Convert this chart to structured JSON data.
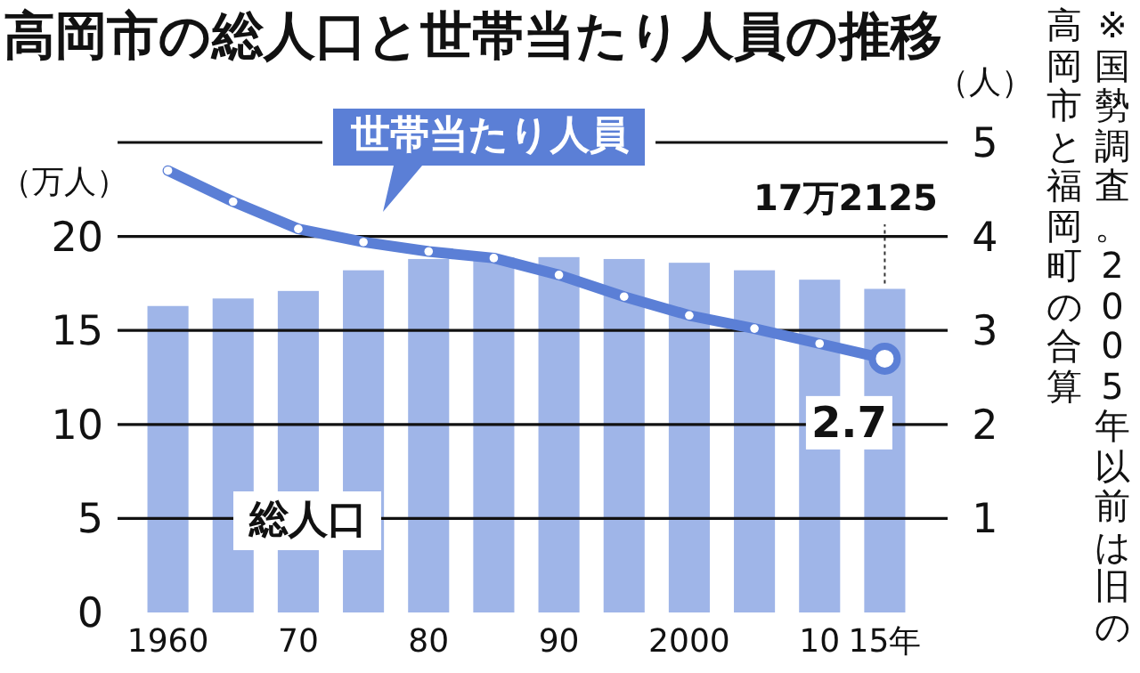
{
  "chart_data": {
    "type": "bar",
    "title": "高岡市の総人口と世帯当たり人員の推移",
    "ylabel": "（万人）",
    "y2label": "（人）",
    "annotations": [
      "※国勢調査。2005年以前は旧の高岡市と福岡町の合算"
    ],
    "categories": [
      "1960",
      null,
      "70",
      null,
      "80",
      null,
      "90",
      null,
      "2000",
      null,
      "10",
      "15年"
    ],
    "series": [
      {
        "name": "総人口",
        "color": "#9fb5e8",
        "values": [
          16.3,
          16.7,
          17.1,
          18.2,
          18.8,
          18.9,
          18.9,
          18.8,
          18.6,
          18.2,
          17.7,
          17.2125
        ],
        "value_labels": [
          null,
          null,
          null,
          null,
          null,
          null,
          null,
          null,
          null,
          null,
          null,
          "17万2125"
        ]
      },
      {
        "name": "世帯当たり人員",
        "type": "line",
        "axis": "y2",
        "color": "#5b7fd6",
        "marker": "circle",
        "values": [
          4.7,
          4.37,
          4.08,
          3.94,
          3.84,
          3.77,
          3.59,
          3.36,
          3.16,
          3.02,
          2.86,
          2.7
        ],
        "value_labels": [
          null,
          null,
          null,
          null,
          null,
          null,
          null,
          null,
          null,
          null,
          null,
          "2.7"
        ]
      }
    ],
    "ylim": [
      0,
      25
    ],
    "yticks": [
      0,
      5,
      10,
      15,
      20,
      {
        "value": 25,
        "label": null
      }
    ],
    "y2lim": [
      0,
      5
    ],
    "y2ticks": [
      1,
      2,
      3,
      4,
      5
    ],
    "grid": "y",
    "legend": false
  }
}
